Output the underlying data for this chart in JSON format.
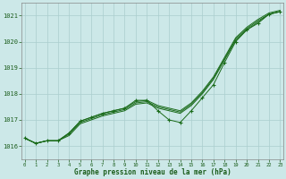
{
  "x": [
    0,
    1,
    2,
    3,
    4,
    5,
    6,
    7,
    8,
    9,
    10,
    11,
    12,
    13,
    14,
    15,
    16,
    17,
    18,
    19,
    20,
    21,
    22,
    23
  ],
  "smooth1": [
    1016.3,
    1016.1,
    1016.2,
    1016.2,
    1016.4,
    1016.85,
    1017.0,
    1017.15,
    1017.25,
    1017.35,
    1017.6,
    1017.65,
    1017.45,
    1017.35,
    1017.25,
    1017.55,
    1018.0,
    1018.55,
    1019.3,
    1020.05,
    1020.45,
    1020.75,
    1021.05,
    1021.15
  ],
  "smooth2": [
    1016.3,
    1016.1,
    1016.2,
    1016.2,
    1016.45,
    1016.9,
    1017.05,
    1017.2,
    1017.3,
    1017.4,
    1017.65,
    1017.7,
    1017.5,
    1017.4,
    1017.3,
    1017.6,
    1018.05,
    1018.6,
    1019.35,
    1020.1,
    1020.5,
    1020.8,
    1021.05,
    1021.15
  ],
  "smooth3": [
    1016.3,
    1016.1,
    1016.2,
    1016.2,
    1016.5,
    1016.95,
    1017.1,
    1017.25,
    1017.35,
    1017.45,
    1017.7,
    1017.75,
    1017.55,
    1017.45,
    1017.35,
    1017.65,
    1018.1,
    1018.65,
    1019.4,
    1020.15,
    1020.55,
    1020.85,
    1021.1,
    1021.2
  ],
  "marker_line": [
    1016.3,
    1016.1,
    1016.2,
    1016.2,
    1016.5,
    1016.95,
    1017.1,
    1017.25,
    1017.35,
    1017.45,
    1017.75,
    1017.75,
    1017.35,
    1017.0,
    1016.9,
    1017.35,
    1017.85,
    1018.35,
    1019.2,
    1020.0,
    1020.45,
    1020.7,
    1021.05,
    1021.15
  ],
  "background_color": "#cce8e8",
  "grid_color": "#aacece",
  "line_color": "#1a6b1a",
  "xlabel": "Graphe pression niveau de la mer (hPa)",
  "xlabel_color": "#1a5c1a",
  "tick_color": "#1a5c1a",
  "ylim": [
    1015.5,
    1021.5
  ],
  "yticks": [
    1016,
    1017,
    1018,
    1019,
    1020,
    1021
  ],
  "xticks": [
    0,
    1,
    2,
    3,
    4,
    5,
    6,
    7,
    8,
    9,
    10,
    11,
    12,
    13,
    14,
    15,
    16,
    17,
    18,
    19,
    20,
    21,
    22,
    23
  ]
}
